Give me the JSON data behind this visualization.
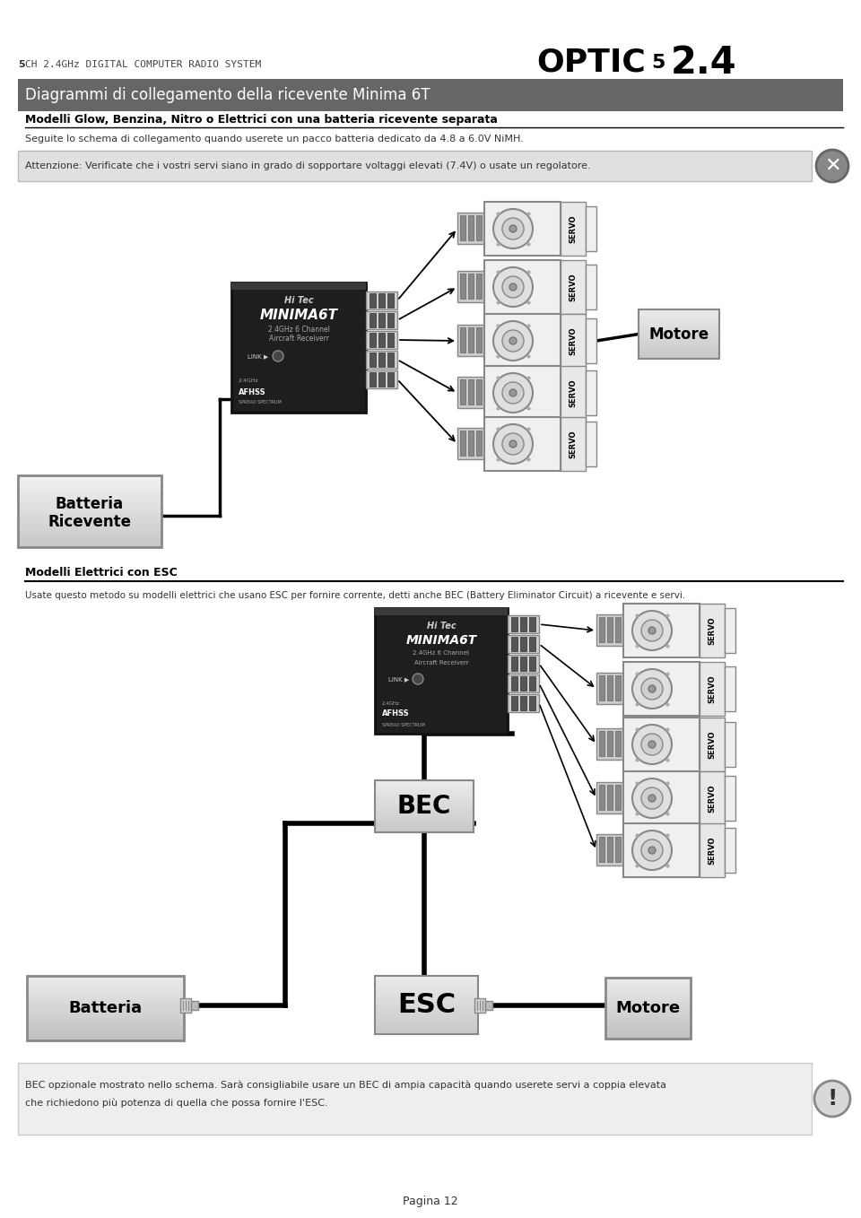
{
  "page_bg": "#ffffff",
  "header_line1_pre": "5",
  "header_line1_post": " CH 2.4GHz DIGITAL COMPUTER RADIO SYSTEM",
  "header_brand": "OPTIC",
  "header_num1": "5",
  "header_num2": "2.4",
  "section1_title": "Diagrammi di collegamento della ricevente Minima 6T",
  "section1_subtitle": "Modelli Glow, Benzina, Nitro o Elettrici con una batteria ricevente separata",
  "section1_note": "Seguite lo schema di collegamento quando userete un pacco batteria dedicato da 4.8 a 6.0V NiMH.",
  "warning_text": "Attenzione: Verificate che i vostri servi siano in grado di sopportare voltaggi elevati (7.4V) o usate un regolatore.",
  "section2_title": "Modelli Elettrici con ESC",
  "section2_note": "Usate questo metodo su modelli elettrici che usano ESC per fornire corrente, detti anche BEC (Battery Eliminator Circuit) a ricevente e servi.",
  "footer_note1": "BEC opzionale mostrato nello schema. Sarà consigliabile usare un BEC di ampia capacità quando userete servi a coppia elevata",
  "footer_note2": "che richiedono più potenza di quella che possa fornire l'ESC.",
  "page_num": "Pagina 12",
  "batteria_ricevente_label1": "Batteria",
  "batteria_ricevente_label2": "Ricevente",
  "motore1_label": "Motore",
  "bec_label": "BEC",
  "esc_label": "ESC",
  "batteria2_label": "Batteria",
  "motore2_label": "Motore"
}
